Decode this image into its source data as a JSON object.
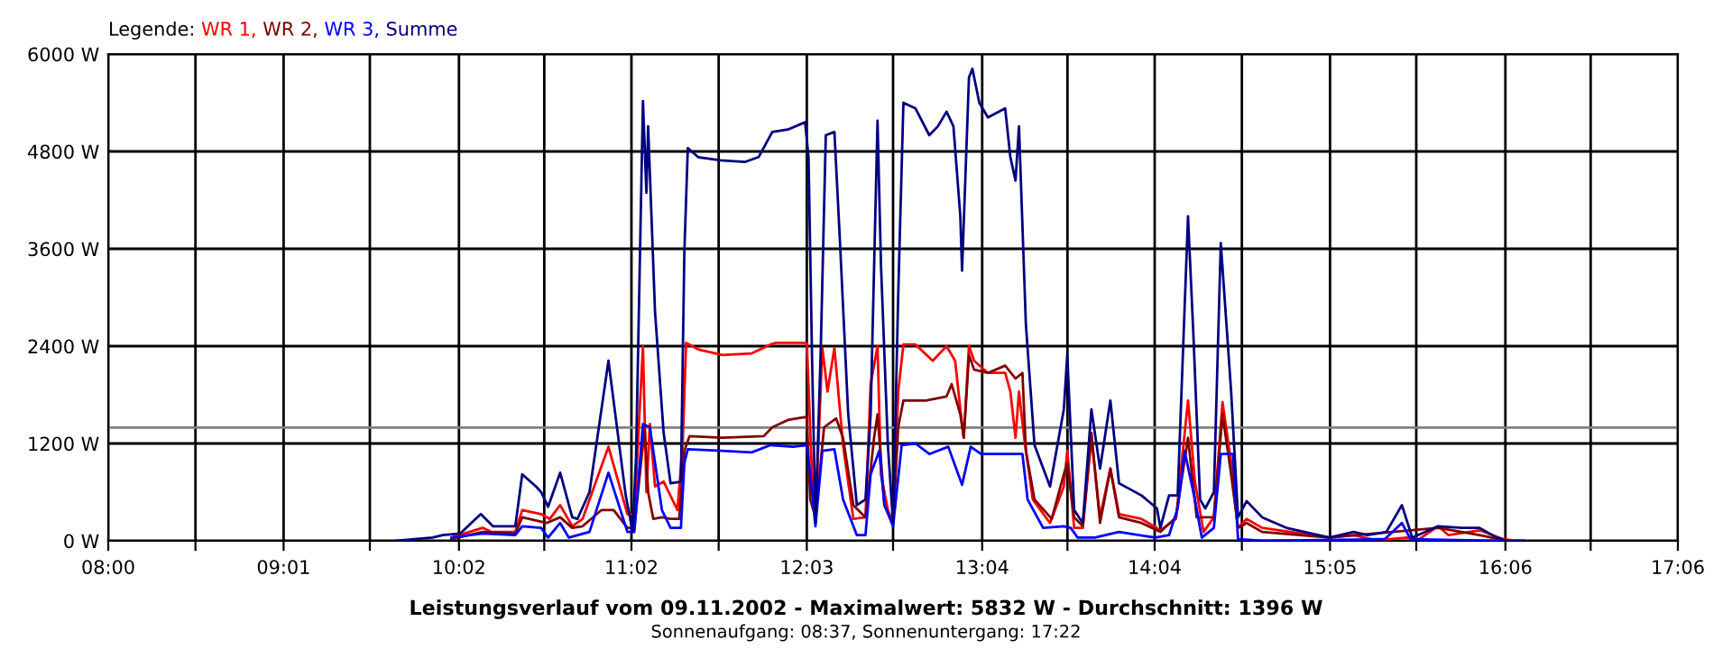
{
  "chart_data": {
    "type": "line",
    "title": "Leistungsverlauf vom 09.11.2002 - Maximalwert: 5832 W - Durchschnitt: 1396 W",
    "subtitle": "Sonnenaufgang: 08:37, Sonnenuntergang: 17:22",
    "legend_title": "Legende:",
    "legend": "top left",
    "grid": true,
    "xlim": [
      8,
      17.1
    ],
    "xticks": [
      {
        "value": 8,
        "label": "08:00"
      },
      {
        "value": 8.5056,
        "label": null
      },
      {
        "value": 9.0167,
        "label": "09:01"
      },
      {
        "value": 9.5167,
        "label": null
      },
      {
        "value": 10.0333,
        "label": "10:02"
      },
      {
        "value": 10.5278,
        "label": null
      },
      {
        "value": 11.0333,
        "label": "11:02"
      },
      {
        "value": 11.5389,
        "label": null
      },
      {
        "value": 12.05,
        "label": "12:03"
      },
      {
        "value": 12.55,
        "label": null
      },
      {
        "value": 13.0667,
        "label": "13:04"
      },
      {
        "value": 13.5611,
        "label": null
      },
      {
        "value": 14.0667,
        "label": "14:04"
      },
      {
        "value": 14.5722,
        "label": null
      },
      {
        "value": 15.0833,
        "label": "15:05"
      },
      {
        "value": 15.5833,
        "label": null
      },
      {
        "value": 16.1,
        "label": "16:06"
      },
      {
        "value": 16.5944,
        "label": null
      },
      {
        "value": 17.1,
        "label": "17:06"
      }
    ],
    "ylim": [
      0,
      6000
    ],
    "yticks": [
      {
        "value": 0,
        "label": "0 W"
      },
      {
        "value": 1200,
        "label": "1200 W"
      },
      {
        "value": 2400,
        "label": "2400 W"
      },
      {
        "value": 3600,
        "label": "3600 W"
      },
      {
        "value": 4800,
        "label": "4800 W"
      },
      {
        "value": 6000,
        "label": "6000 W"
      }
    ],
    "ref_lines": [
      {
        "axis": "y",
        "value": 1396,
        "color": "#808080"
      }
    ],
    "series": [
      {
        "name": "WR 1,",
        "color": "#ff0000",
        "x": [
          9.99,
          10.17,
          10.22,
          10.36,
          10.4,
          10.51,
          10.56,
          10.62,
          10.69,
          10.75,
          10.9,
          11.01,
          11.05,
          11.1,
          11.12,
          11.14,
          11.17,
          11.22,
          11.3,
          11.33,
          11.35,
          11.42,
          11.56,
          11.73,
          11.84,
          11.87,
          12.05,
          12.08,
          12.1,
          12.14,
          12.17,
          12.21,
          12.26,
          12.32,
          12.39,
          12.42,
          12.46,
          12.48,
          12.52,
          12.55,
          12.58,
          12.61,
          12.68,
          12.78,
          12.86,
          12.91,
          12.94,
          12.96,
          12.99,
          13.02,
          13.1,
          13.2,
          13.23,
          13.26,
          13.28,
          13.31,
          13.36,
          13.46,
          13.54,
          13.56,
          13.6,
          13.65,
          13.7,
          13.75,
          13.81,
          13.86,
          13.99,
          14.1,
          14.19,
          14.26,
          14.3,
          14.35,
          14.41,
          14.46,
          14.51,
          14.55,
          14.6,
          14.69,
          15.08,
          15.22,
          15.32,
          15.43,
          15.53,
          15.6,
          15.71,
          15.77,
          15.95,
          16.09,
          16.16
        ],
        "values": [
          40,
          160,
          110,
          110,
          380,
          330,
          270,
          440,
          180,
          270,
          1160,
          330,
          330,
          2400,
          600,
          1440,
          670,
          730,
          380,
          1180,
          2440,
          2360,
          2290,
          2310,
          2420,
          2440,
          2440,
          820,
          290,
          2380,
          1840,
          2380,
          1180,
          270,
          290,
          1930,
          2400,
          820,
          380,
          220,
          1840,
          2420,
          2420,
          2220,
          2400,
          2220,
          1620,
          1270,
          2400,
          2220,
          2070,
          2070,
          1840,
          1270,
          1840,
          1270,
          510,
          220,
          670,
          1110,
          160,
          160,
          1270,
          290,
          890,
          330,
          270,
          130,
          270,
          1730,
          730,
          110,
          290,
          1710,
          960,
          160,
          270,
          160,
          40,
          70,
          20,
          20,
          40,
          20,
          180,
          70,
          130,
          20,
          0
        ]
      },
      {
        "name": "WR 2,",
        "color": "#800000",
        "x": [
          9.99,
          10.17,
          10.36,
          10.4,
          10.54,
          10.62,
          10.69,
          10.75,
          10.86,
          10.93,
          11.01,
          11.05,
          11.11,
          11.13,
          11.16,
          11.21,
          11.26,
          11.31,
          11.34,
          11.37,
          11.56,
          11.8,
          11.85,
          11.94,
          12.05,
          12.07,
          12.1,
          12.15,
          12.22,
          12.26,
          12.32,
          12.39,
          12.44,
          12.46,
          12.5,
          12.55,
          12.58,
          12.61,
          12.74,
          12.86,
          12.89,
          12.94,
          12.96,
          12.99,
          13.02,
          13.1,
          13.2,
          13.26,
          13.3,
          13.32,
          13.37,
          13.47,
          13.54,
          13.56,
          13.6,
          13.65,
          13.7,
          13.75,
          13.81,
          13.86,
          13.99,
          14.1,
          14.19,
          14.26,
          14.31,
          14.41,
          14.46,
          14.51,
          14.55,
          14.6,
          14.69,
          15.08,
          15.71,
          15.95,
          16.11
        ],
        "values": [
          20,
          110,
          90,
          290,
          220,
          290,
          160,
          180,
          380,
          380,
          160,
          160,
          1400,
          600,
          270,
          290,
          270,
          270,
          1110,
          1290,
          1270,
          1290,
          1400,
          1490,
          1530,
          510,
          290,
          1400,
          1510,
          1270,
          440,
          290,
          1270,
          1560,
          440,
          220,
          1400,
          1730,
          1730,
          1780,
          1930,
          1560,
          1270,
          2290,
          2110,
          2070,
          2160,
          2000,
          2070,
          1110,
          510,
          270,
          820,
          960,
          290,
          180,
          1330,
          220,
          890,
          290,
          220,
          110,
          290,
          1270,
          290,
          290,
          1560,
          820,
          160,
          220,
          110,
          40,
          160,
          70,
          0
        ]
      },
      {
        "name": "WR 3,",
        "color": "#0000ff",
        "x": [
          9.99,
          10.17,
          10.36,
          10.4,
          10.51,
          10.55,
          10.62,
          10.67,
          10.79,
          10.9,
          11.01,
          11.05,
          11.1,
          11.14,
          11.21,
          11.26,
          11.32,
          11.34,
          11.36,
          11.56,
          11.73,
          11.84,
          11.97,
          12.05,
          12.07,
          12.1,
          12.14,
          12.21,
          12.26,
          12.34,
          12.39,
          12.42,
          12.47,
          12.5,
          12.55,
          12.6,
          12.68,
          12.76,
          12.87,
          12.95,
          13.0,
          13.06,
          13.3,
          13.33,
          13.42,
          13.54,
          13.58,
          13.62,
          13.72,
          13.86,
          14.07,
          14.15,
          14.2,
          14.24,
          14.3,
          14.34,
          14.41,
          14.45,
          14.52,
          14.55,
          14.69,
          15.4,
          15.5,
          15.55,
          16.09
        ],
        "values": [
          40,
          90,
          70,
          180,
          160,
          40,
          220,
          40,
          110,
          840,
          110,
          110,
          1440,
          1400,
          380,
          160,
          160,
          960,
          1130,
          1110,
          1090,
          1180,
          1160,
          1180,
          820,
          180,
          1110,
          1130,
          510,
          70,
          70,
          820,
          1110,
          440,
          180,
          1180,
          1200,
          1070,
          1160,
          690,
          1160,
          1070,
          1070,
          510,
          160,
          180,
          160,
          40,
          40,
          110,
          40,
          70,
          400,
          1110,
          510,
          40,
          160,
          1070,
          1070,
          20,
          0,
          20,
          220,
          20,
          0
        ]
      },
      {
        "name": "Summe",
        "color": "#000080",
        "x": [
          9.67,
          9.88,
          9.94,
          10.04,
          10.16,
          10.23,
          10.36,
          10.4,
          10.48,
          10.51,
          10.55,
          10.62,
          10.69,
          10.72,
          10.79,
          10.9,
          11.0,
          11.04,
          11.06,
          11.1,
          11.12,
          11.13,
          11.17,
          11.22,
          11.26,
          11.32,
          11.34,
          11.36,
          11.42,
          11.55,
          11.69,
          11.77,
          11.85,
          11.94,
          12.04,
          12.06,
          12.08,
          12.1,
          12.13,
          12.16,
          12.21,
          12.24,
          12.29,
          12.34,
          12.39,
          12.42,
          12.46,
          12.48,
          12.52,
          12.55,
          12.58,
          12.61,
          12.68,
          12.76,
          12.81,
          12.86,
          12.9,
          12.94,
          12.95,
          12.99,
          13.01,
          13.05,
          13.1,
          13.2,
          13.23,
          13.26,
          13.28,
          13.32,
          13.37,
          13.46,
          13.54,
          13.56,
          13.6,
          13.65,
          13.7,
          13.75,
          13.81,
          13.86,
          13.99,
          14.08,
          14.1,
          14.15,
          14.2,
          14.26,
          14.29,
          14.33,
          14.36,
          14.41,
          14.45,
          14.51,
          14.55,
          14.6,
          14.69,
          14.83,
          15.08,
          15.22,
          15.3,
          15.41,
          15.5,
          15.56,
          15.71,
          15.85,
          15.95,
          16.05,
          16.11,
          16.21
        ],
        "values": [
          0,
          40,
          70,
          90,
          330,
          180,
          180,
          820,
          670,
          600,
          420,
          840,
          290,
          270,
          600,
          2220,
          560,
          110,
          1040,
          5420,
          4290,
          5110,
          2820,
          1330,
          710,
          730,
          3560,
          4840,
          4730,
          4690,
          4670,
          4730,
          5040,
          5070,
          5160,
          4730,
          2290,
          220,
          2290,
          5000,
          5040,
          3780,
          1560,
          440,
          510,
          1560,
          5180,
          3400,
          1180,
          220,
          3040,
          5400,
          5330,
          5000,
          5110,
          5290,
          5110,
          4000,
          3330,
          5710,
          5820,
          5400,
          5220,
          5330,
          4730,
          4440,
          5110,
          2670,
          1180,
          670,
          1620,
          2290,
          380,
          220,
          1620,
          890,
          1730,
          710,
          560,
          400,
          160,
          560,
          560,
          4000,
          2600,
          510,
          400,
          600,
          3670,
          1840,
          290,
          490,
          290,
          160,
          40,
          110,
          70,
          110,
          440,
          40,
          180,
          160,
          160,
          40,
          0,
          0
        ]
      }
    ]
  }
}
